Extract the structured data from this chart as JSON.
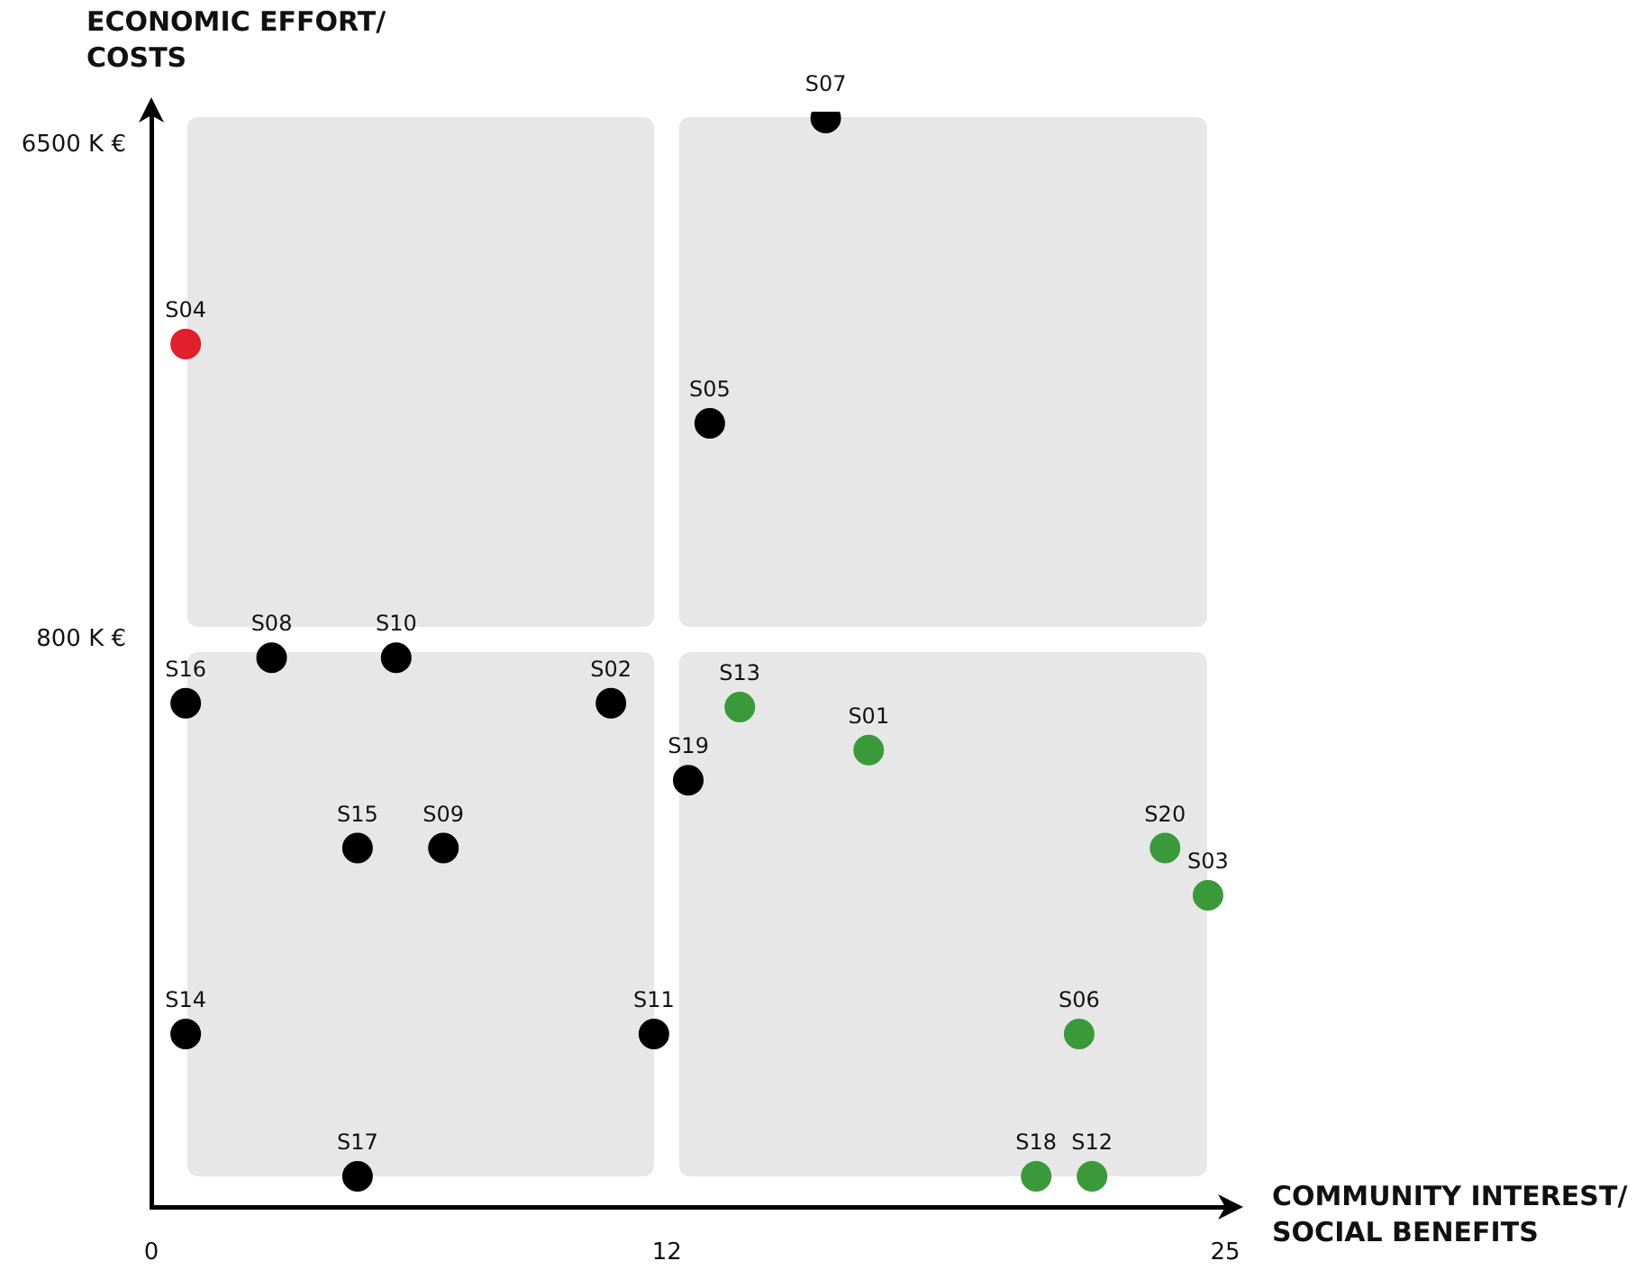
{
  "chart_data": {
    "type": "scatter",
    "xlabel": "COMMUNITY INTEREST/\nSOCIAL BENEFITS",
    "ylabel": "ECONOMIC EFFORT/\nCOSTS",
    "series": [
      {
        "color": "#000000",
        "x": [
          15.7,
          13.0,
          2.8,
          5.7,
          0.8,
          10.7,
          12.5,
          4.8,
          6.8,
          0.8,
          11.7,
          4.8
        ],
        "values": [
          7300,
          2000,
          740,
          740,
          610,
          610,
          440,
          330,
          330,
          150,
          150,
          82
        ]
      },
      {
        "color": "#e0202a",
        "x": [
          0.8
        ],
        "values": [
          2800
        ]
      },
      {
        "color": "#3a9a3a",
        "x": [
          13.7,
          16.7,
          23.6,
          24.6,
          21.6,
          20.6,
          21.9
        ],
        "values": [
          600,
          500,
          330,
          270,
          150,
          82,
          82
        ]
      }
    ],
    "annotations": [
      {
        "text": "S07",
        "x": 15.7,
        "y": 7300
      },
      {
        "text": "S05",
        "x": 13.0,
        "y": 2000
      },
      {
        "text": "S08",
        "x": 2.8,
        "y": 740
      },
      {
        "text": "S10",
        "x": 5.7,
        "y": 740
      },
      {
        "text": "S16",
        "x": 0.8,
        "y": 610
      },
      {
        "text": "S02",
        "x": 10.7,
        "y": 610
      },
      {
        "text": "S19",
        "x": 12.5,
        "y": 440
      },
      {
        "text": "S15",
        "x": 4.8,
        "y": 330
      },
      {
        "text": "S09",
        "x": 6.8,
        "y": 330
      },
      {
        "text": "S14",
        "x": 0.8,
        "y": 150
      },
      {
        "text": "S11",
        "x": 11.7,
        "y": 150
      },
      {
        "text": "S17",
        "x": 4.8,
        "y": 82
      },
      {
        "text": "S04",
        "x": 0.8,
        "y": 2800
      },
      {
        "text": "S13",
        "x": 13.7,
        "y": 600
      },
      {
        "text": "S01",
        "x": 16.7,
        "y": 500
      },
      {
        "text": "S20",
        "x": 23.6,
        "y": 330
      },
      {
        "text": "S03",
        "x": 24.6,
        "y": 270
      },
      {
        "text": "S06",
        "x": 21.6,
        "y": 150
      },
      {
        "text": "S18",
        "x": 20.6,
        "y": 82
      },
      {
        "text": "S12",
        "x": 21.9,
        "y": 82
      }
    ],
    "xlim": [
      0,
      25
    ],
    "xticks": [
      0,
      12,
      25
    ],
    "ylim": [
      72,
      7500
    ],
    "yticks": [
      {
        "value": 800,
        "label": "800 K €"
      },
      {
        "value": 6500,
        "label": "6500 K €"
      }
    ],
    "log": "y",
    "grid": false,
    "legend": false,
    "marker": "circle"
  }
}
